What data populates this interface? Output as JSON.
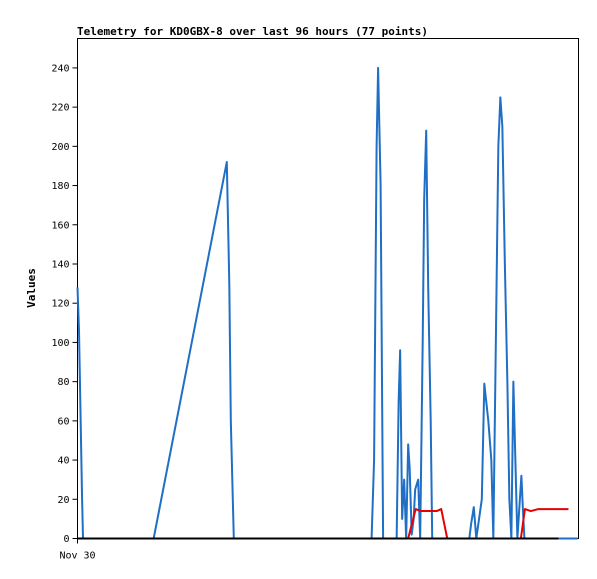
{
  "chart_data": {
    "type": "line",
    "title": "Telemetry for KD0GBX-8 over last 96 hours (77 points)",
    "xlabel": "",
    "ylabel": "Values",
    "x_tick_labels": [
      "Nov 30"
    ],
    "xlim": [
      0,
      100
    ],
    "ylim": [
      0,
      255
    ],
    "y_ticks": [
      0,
      20,
      40,
      60,
      80,
      100,
      120,
      140,
      160,
      180,
      200,
      220,
      240
    ],
    "grid": false,
    "colors": {
      "series_blue": "#1f6fc6",
      "series_red": "#e60000",
      "baseline": "#000000"
    },
    "series": [
      {
        "color": "#1f6fc6",
        "points": [
          [
            0,
            128
          ],
          [
            0.3,
            106
          ],
          [
            0.6,
            64
          ],
          [
            0.9,
            22
          ],
          [
            1.1,
            0
          ],
          [
            15.2,
            0
          ],
          [
            29.8,
            192
          ],
          [
            30.3,
            130
          ],
          [
            30.6,
            60
          ],
          [
            31.2,
            0
          ],
          [
            58.7,
            0
          ],
          [
            59.2,
            40
          ],
          [
            59.7,
            200
          ],
          [
            60.0,
            240
          ],
          [
            60.5,
            180
          ],
          [
            61.0,
            0
          ],
          [
            63.7,
            0
          ],
          [
            64.1,
            70
          ],
          [
            64.4,
            96
          ],
          [
            64.8,
            10
          ],
          [
            65.2,
            30
          ],
          [
            65.6,
            0
          ],
          [
            66.0,
            48
          ],
          [
            66.3,
            36
          ],
          [
            66.7,
            2
          ],
          [
            67.1,
            10
          ],
          [
            67.4,
            25
          ],
          [
            68.0,
            30
          ],
          [
            68.4,
            0
          ],
          [
            68.9,
            100
          ],
          [
            69.2,
            173
          ],
          [
            69.6,
            208
          ],
          [
            70.0,
            128
          ],
          [
            70.5,
            60
          ],
          [
            70.8,
            0
          ],
          [
            78.2,
            0
          ],
          [
            78.6,
            8
          ],
          [
            79.1,
            16
          ],
          [
            79.6,
            0
          ],
          [
            80.7,
            20
          ],
          [
            81.2,
            79
          ],
          [
            82.0,
            60
          ],
          [
            82.6,
            40
          ],
          [
            83.0,
            0
          ],
          [
            83.5,
            100
          ],
          [
            84.0,
            200
          ],
          [
            84.4,
            225
          ],
          [
            84.8,
            210
          ],
          [
            85.3,
            140
          ],
          [
            85.8,
            80
          ],
          [
            86.2,
            20
          ],
          [
            86.6,
            0
          ],
          [
            87.0,
            80
          ],
          [
            87.4,
            40
          ],
          [
            87.8,
            0
          ],
          [
            88.3,
            20
          ],
          [
            88.6,
            32
          ],
          [
            88.9,
            15
          ],
          [
            89.2,
            0
          ],
          [
            99.8,
            0
          ]
        ]
      },
      {
        "color": "#e60000",
        "points": [
          [
            0,
            0
          ],
          [
            66.0,
            0
          ],
          [
            67.5,
            15
          ],
          [
            68.5,
            14
          ],
          [
            70.0,
            14
          ],
          [
            71.7,
            14
          ],
          [
            72.6,
            15
          ],
          [
            73.8,
            0
          ],
          [
            88.5,
            0
          ],
          [
            89.3,
            15
          ],
          [
            90.5,
            14
          ],
          [
            92.0,
            15
          ],
          [
            98.0,
            15
          ]
        ]
      }
    ]
  }
}
